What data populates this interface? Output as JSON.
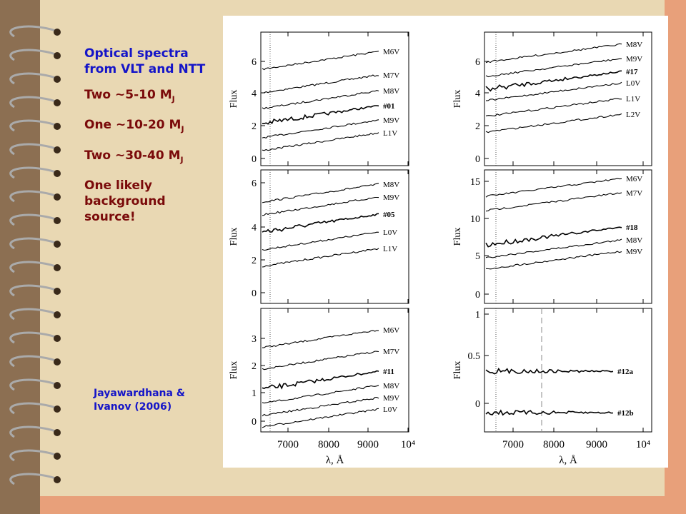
{
  "slide": {
    "heading": "Optical spectra from VLT and NTT",
    "points": [
      {
        "text": "Two ~5-10 M",
        "sub": "J"
      },
      {
        "text": "One ~10-20 M",
        "sub": "J"
      },
      {
        "text": "Two ~30-40 M",
        "sub": "J"
      }
    ],
    "note": "One likely background source!",
    "citation": "Jayawardhana & Ivanov (2006)"
  },
  "figure": {
    "y_label": "Flux",
    "x_label": "λ, Å",
    "xticks": [
      "7000",
      "8000",
      "9000",
      "10⁴"
    ],
    "panels": [
      {
        "yticks": [
          "0",
          "2",
          "4",
          "6"
        ],
        "labels": [
          "M6V",
          "M7V",
          "M8V",
          "#01",
          "M9V",
          "L1V"
        ]
      },
      {
        "yticks": [
          "0",
          "2",
          "4",
          "6"
        ],
        "labels": [
          "M8V",
          "M9V",
          "#05",
          "L0V",
          "L1V"
        ]
      },
      {
        "yticks": [
          "0",
          "1",
          "2",
          "3"
        ],
        "labels": [
          "M6V",
          "M7V",
          "#11",
          "M8V",
          "M9V",
          "L0V"
        ]
      },
      {
        "yticks": [
          "0",
          "2",
          "4",
          "6"
        ],
        "labels": [
          "M8V",
          "M9V",
          "#17",
          "L0V",
          "L1V",
          "L2V"
        ]
      },
      {
        "yticks": [
          "0",
          "5",
          "10",
          "15"
        ],
        "labels": [
          "M6V",
          "M7V",
          "#18",
          "M8V",
          "M9V"
        ]
      },
      {
        "yticks": [
          "0",
          "0.5",
          "1"
        ],
        "labels": [
          "#12a",
          "#12b"
        ]
      }
    ]
  }
}
